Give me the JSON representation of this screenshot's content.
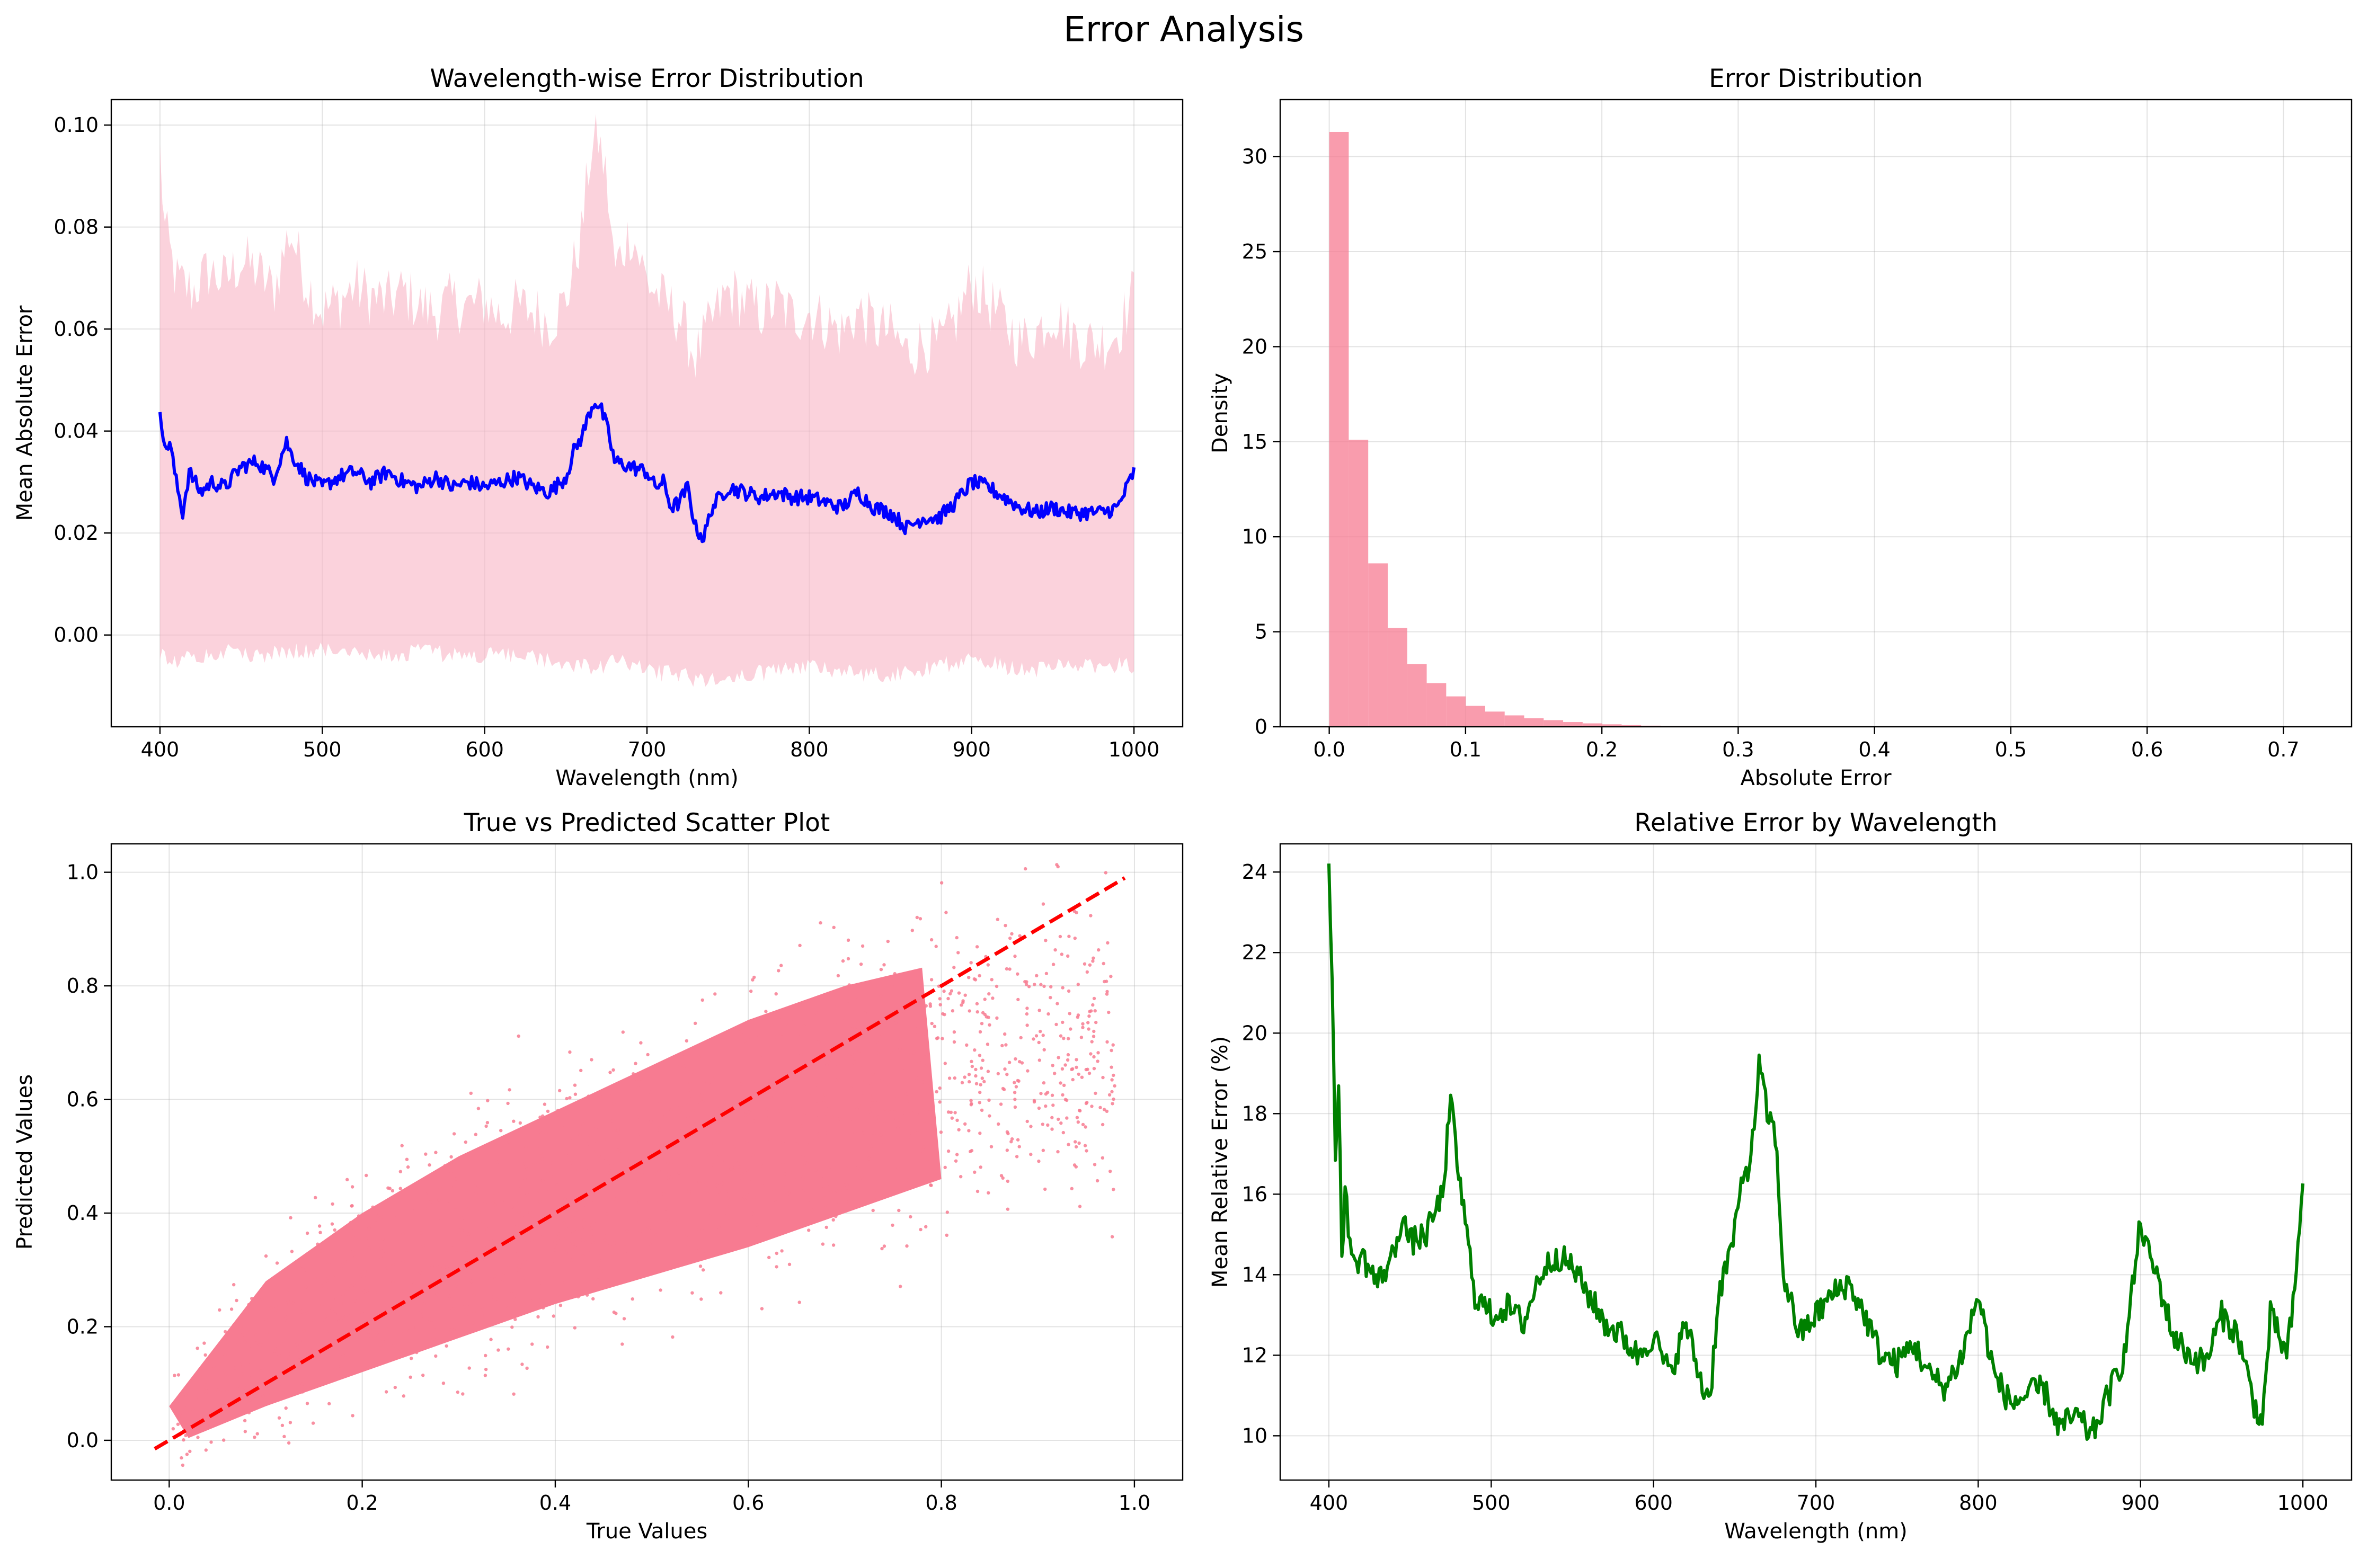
{
  "suptitle": "Error Analysis",
  "chart_data": [
    {
      "type": "line",
      "title": "Wavelength-wise Error Distribution",
      "xlabel": "Wavelength (nm)",
      "ylabel": "Mean Absolute Error",
      "xlim": [
        370,
        1030
      ],
      "ylim": [
        -0.018,
        0.105
      ],
      "xticks": [
        400,
        500,
        600,
        700,
        800,
        900,
        1000
      ],
      "yticks": [
        0.0,
        0.02,
        0.04,
        0.06,
        0.08,
        0.1
      ],
      "ytick_labels": [
        "0.00",
        "0.02",
        "0.04",
        "0.06",
        "0.08",
        "0.10"
      ],
      "grid": true,
      "line_color": "#0000ff",
      "band_color": "#f9b4c4",
      "mean": {
        "x": [
          400,
          403,
          406,
          410,
          414,
          418,
          425,
          432,
          440,
          450,
          460,
          470,
          478,
          480,
          490,
          500,
          510,
          520,
          530,
          540,
          550,
          560,
          570,
          580,
          590,
          600,
          610,
          620,
          630,
          640,
          650,
          655,
          660,
          665,
          668,
          672,
          676,
          680,
          690,
          700,
          705,
          710,
          715,
          720,
          725,
          730,
          735,
          740,
          750,
          760,
          770,
          780,
          790,
          800,
          810,
          820,
          830,
          840,
          850,
          860,
          870,
          880,
          890,
          900,
          910,
          920,
          930,
          940,
          950,
          960,
          970,
          980,
          990,
          1000
        ],
        "y": [
          0.045,
          0.036,
          0.038,
          0.03,
          0.024,
          0.032,
          0.028,
          0.03,
          0.029,
          0.033,
          0.034,
          0.031,
          0.038,
          0.036,
          0.031,
          0.029,
          0.031,
          0.032,
          0.03,
          0.032,
          0.03,
          0.029,
          0.031,
          0.029,
          0.03,
          0.029,
          0.03,
          0.031,
          0.029,
          0.028,
          0.031,
          0.036,
          0.039,
          0.044,
          0.046,
          0.044,
          0.04,
          0.034,
          0.033,
          0.032,
          0.029,
          0.03,
          0.025,
          0.026,
          0.029,
          0.021,
          0.019,
          0.025,
          0.029,
          0.028,
          0.027,
          0.028,
          0.027,
          0.027,
          0.026,
          0.025,
          0.028,
          0.025,
          0.024,
          0.021,
          0.023,
          0.023,
          0.026,
          0.03,
          0.029,
          0.027,
          0.025,
          0.024,
          0.025,
          0.024,
          0.024,
          0.024,
          0.025,
          0.032
        ]
      },
      "band_upper": {
        "x": [
          400,
          403,
          410,
          420,
          430,
          440,
          450,
          460,
          470,
          480,
          490,
          500,
          510,
          520,
          530,
          540,
          550,
          560,
          570,
          580,
          590,
          600,
          610,
          620,
          630,
          640,
          650,
          660,
          665,
          670,
          675,
          680,
          690,
          700,
          710,
          720,
          730,
          740,
          750,
          760,
          770,
          780,
          790,
          800,
          810,
          820,
          830,
          840,
          850,
          860,
          870,
          880,
          890,
          900,
          910,
          920,
          930,
          940,
          950,
          960,
          970,
          980,
          990,
          1000
        ],
        "y": [
          0.095,
          0.08,
          0.07,
          0.068,
          0.072,
          0.07,
          0.074,
          0.072,
          0.068,
          0.08,
          0.07,
          0.064,
          0.066,
          0.069,
          0.067,
          0.066,
          0.068,
          0.065,
          0.064,
          0.066,
          0.065,
          0.066,
          0.063,
          0.065,
          0.064,
          0.062,
          0.066,
          0.08,
          0.095,
          0.098,
          0.09,
          0.072,
          0.08,
          0.07,
          0.066,
          0.063,
          0.055,
          0.062,
          0.068,
          0.066,
          0.064,
          0.066,
          0.063,
          0.064,
          0.062,
          0.06,
          0.064,
          0.061,
          0.06,
          0.056,
          0.058,
          0.057,
          0.062,
          0.07,
          0.066,
          0.062,
          0.058,
          0.06,
          0.064,
          0.06,
          0.058,
          0.058,
          0.06,
          0.068
        ]
      },
      "band_lower": {
        "x": [
          400,
          410,
          420,
          440,
          460,
          480,
          500,
          520,
          540,
          560,
          580,
          600,
          620,
          640,
          660,
          670,
          680,
          700,
          720,
          740,
          760,
          780,
          800,
          820,
          840,
          860,
          880,
          900,
          920,
          940,
          960,
          980,
          1000
        ],
        "y": [
          -0.004,
          -0.005,
          -0.004,
          -0.003,
          -0.004,
          -0.003,
          -0.003,
          -0.003,
          -0.004,
          -0.003,
          -0.004,
          -0.004,
          -0.004,
          -0.005,
          -0.006,
          -0.007,
          -0.005,
          -0.007,
          -0.008,
          -0.009,
          -0.008,
          -0.007,
          -0.006,
          -0.007,
          -0.008,
          -0.007,
          -0.006,
          -0.005,
          -0.006,
          -0.007,
          -0.006,
          -0.006,
          -0.006
        ]
      }
    },
    {
      "type": "bar",
      "title": "Error Distribution",
      "xlabel": "Absolute Error",
      "ylabel": "Density",
      "xlim": [
        -0.036,
        0.75
      ],
      "ylim": [
        0,
        33
      ],
      "xticks": [
        0.0,
        0.1,
        0.2,
        0.3,
        0.4,
        0.5,
        0.6,
        0.7
      ],
      "xtick_labels": [
        "0.0",
        "0.1",
        "0.2",
        "0.3",
        "0.4",
        "0.5",
        "0.6",
        "0.7"
      ],
      "yticks": [
        0,
        5,
        10,
        15,
        20,
        25,
        30
      ],
      "grid": true,
      "bar_color": "#f77b91",
      "bin_width": 0.0143,
      "bin_start": 0.0,
      "values": [
        31.3,
        15.1,
        8.6,
        5.2,
        3.3,
        2.3,
        1.6,
        1.1,
        0.8,
        0.6,
        0.45,
        0.35,
        0.25,
        0.18,
        0.13,
        0.09,
        0.06,
        0.04,
        0.03,
        0.02
      ]
    },
    {
      "type": "scatter",
      "title": "True vs Predicted Scatter Plot",
      "xlabel": "True Values",
      "ylabel": "Predicted Values",
      "xlim": [
        -0.06,
        1.05
      ],
      "ylim": [
        -0.07,
        1.05
      ],
      "xticks": [
        0.0,
        0.2,
        0.4,
        0.6,
        0.8,
        1.0
      ],
      "yticks": [
        0.0,
        0.2,
        0.4,
        0.6,
        0.8,
        1.0
      ],
      "tick_labels": [
        "0.0",
        "0.2",
        "0.4",
        "0.6",
        "0.8",
        "1.0"
      ],
      "grid": true,
      "point_color": "#f77b91",
      "cloud_lower_edge": {
        "x": [
          0.0,
          0.1,
          0.2,
          0.3,
          0.4,
          0.5,
          0.6,
          0.7,
          0.8
        ],
        "y": [
          -0.01,
          0.06,
          0.12,
          0.18,
          0.24,
          0.29,
          0.34,
          0.4,
          0.46
        ]
      },
      "cloud_upper_edge": {
        "x": [
          0.0,
          0.1,
          0.2,
          0.3,
          0.4,
          0.5,
          0.6,
          0.7,
          0.8
        ],
        "y": [
          0.06,
          0.28,
          0.4,
          0.5,
          0.58,
          0.66,
          0.74,
          0.8,
          0.84
        ]
      },
      "reference_line": {
        "x": [
          -0.015,
          0.99
        ],
        "y": [
          -0.015,
          0.99
        ],
        "color": "#ff0000",
        "style": "dashed"
      }
    },
    {
      "type": "line",
      "title": "Relative Error by Wavelength",
      "xlabel": "Wavelength (nm)",
      "ylabel": "Mean Relative Error (%)",
      "xlim": [
        370,
        1030
      ],
      "ylim": [
        8.9,
        24.7
      ],
      "xticks": [
        400,
        500,
        600,
        700,
        800,
        900,
        1000
      ],
      "yticks": [
        10,
        12,
        14,
        16,
        18,
        20,
        22,
        24
      ],
      "grid": true,
      "line_color": "#008000",
      "x": [
        400,
        402,
        404,
        406,
        408,
        410,
        415,
        420,
        430,
        440,
        445,
        450,
        460,
        470,
        475,
        480,
        485,
        490,
        500,
        510,
        520,
        530,
        540,
        550,
        560,
        570,
        580,
        590,
        600,
        610,
        620,
        630,
        635,
        640,
        650,
        655,
        660,
        665,
        670,
        675,
        680,
        690,
        700,
        710,
        720,
        730,
        740,
        750,
        760,
        770,
        780,
        790,
        800,
        810,
        820,
        830,
        840,
        850,
        860,
        870,
        880,
        890,
        900,
        905,
        910,
        920,
        930,
        940,
        950,
        960,
        970,
        975,
        980,
        990,
        995,
        1000
      ],
      "y": [
        24.0,
        21.5,
        16.5,
        19.0,
        14.5,
        16.0,
        14.2,
        14.5,
        13.8,
        14.5,
        15.5,
        14.8,
        15.0,
        16.0,
        18.3,
        16.5,
        15.0,
        13.5,
        13.0,
        13.2,
        12.8,
        14.0,
        14.5,
        14.2,
        13.5,
        12.8,
        12.5,
        12.0,
        12.5,
        11.5,
        12.8,
        11.2,
        11.0,
        13.5,
        15.0,
        16.5,
        16.8,
        19.2,
        18.0,
        17.5,
        14.0,
        12.5,
        13.0,
        13.5,
        13.8,
        13.0,
        12.0,
        11.8,
        12.3,
        11.5,
        11.2,
        12.0,
        13.5,
        11.5,
        10.8,
        11.0,
        11.2,
        10.2,
        10.5,
        10.0,
        11.0,
        12.0,
        15.3,
        14.5,
        14.0,
        12.5,
        12.0,
        11.8,
        13.0,
        12.5,
        10.8,
        10.3,
        13.0,
        12.0,
        13.5,
        16.4
      ]
    }
  ]
}
